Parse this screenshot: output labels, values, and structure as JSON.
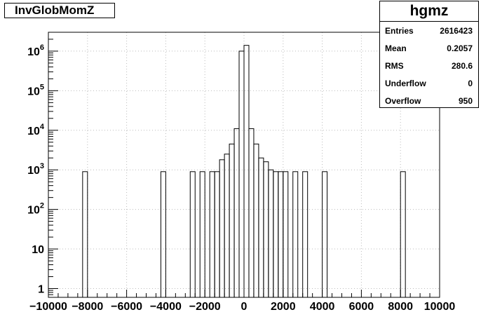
{
  "histogram_title": "InvGlobMomZ",
  "stats": {
    "name": "hgmz",
    "rows": [
      {
        "label": "Entries",
        "value": "2616423"
      },
      {
        "label": "Mean",
        "value": "0.2057"
      },
      {
        "label": "RMS",
        "value": "280.6"
      },
      {
        "label": "Underflow",
        "value": "0"
      },
      {
        "label": "Overflow",
        "value": "950"
      }
    ]
  },
  "chart_data": {
    "type": "bar",
    "histogram": true,
    "title": "InvGlobMomZ",
    "xlabel": "",
    "ylabel": "",
    "xlim": [
      -10000,
      10000
    ],
    "ylim": [
      0.6,
      3000000
    ],
    "yscale": "log",
    "grid": true,
    "bin_width": 250,
    "x_ticks": [
      -10000,
      -8000,
      -6000,
      -4000,
      -2000,
      0,
      2000,
      4000,
      6000,
      8000,
      10000
    ],
    "x_tick_labels": [
      "−10000",
      "−8000",
      "−6000",
      "−4000",
      "−2000",
      "0",
      "2000",
      "4000",
      "6000",
      "8000",
      "10000"
    ],
    "y_ticks": [
      1,
      10,
      100,
      1000,
      10000,
      100000,
      1000000
    ],
    "y_tick_labels": [
      "1",
      "10",
      "10^2",
      "10^3",
      "10^4",
      "10^5",
      "10^6"
    ],
    "bins": [
      {
        "x0": -8250,
        "x1": -8000,
        "count": 900
      },
      {
        "x0": -4250,
        "x1": -4000,
        "count": 900
      },
      {
        "x0": -2750,
        "x1": -2500,
        "count": 900
      },
      {
        "x0": -2250,
        "x1": -2000,
        "count": 900
      },
      {
        "x0": -1750,
        "x1": -1500,
        "count": 900
      },
      {
        "x0": -1500,
        "x1": -1250,
        "count": 900
      },
      {
        "x0": -1250,
        "x1": -1000,
        "count": 1800
      },
      {
        "x0": -1000,
        "x1": -750,
        "count": 2500
      },
      {
        "x0": -750,
        "x1": -500,
        "count": 4500
      },
      {
        "x0": -500,
        "x1": -250,
        "count": 11000
      },
      {
        "x0": -250,
        "x1": 0,
        "count": 1000000
      },
      {
        "x0": 0,
        "x1": 250,
        "count": 1400000
      },
      {
        "x0": 250,
        "x1": 500,
        "count": 11000
      },
      {
        "x0": 500,
        "x1": 750,
        "count": 4500
      },
      {
        "x0": 750,
        "x1": 1000,
        "count": 2000
      },
      {
        "x0": 1000,
        "x1": 1250,
        "count": 1600
      },
      {
        "x0": 1250,
        "x1": 1500,
        "count": 1000
      },
      {
        "x0": 1500,
        "x1": 1750,
        "count": 900
      },
      {
        "x0": 1750,
        "x1": 2000,
        "count": 900
      },
      {
        "x0": 2000,
        "x1": 2250,
        "count": 900
      },
      {
        "x0": 2500,
        "x1": 2750,
        "count": 900
      },
      {
        "x0": 3000,
        "x1": 3250,
        "count": 900
      },
      {
        "x0": 4000,
        "x1": 4250,
        "count": 900
      },
      {
        "x0": 8000,
        "x1": 8250,
        "count": 900
      }
    ]
  }
}
